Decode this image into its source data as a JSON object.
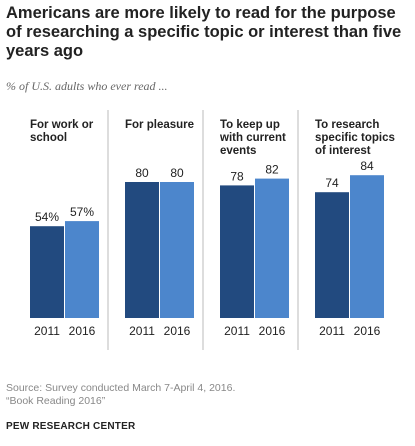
{
  "title": "Americans are more likely to read for the purpose of researching  a specific topic or interest than five years ago",
  "subtitle": "% of U.S. adults who ever read ...",
  "colors": {
    "y2011": "#224a7f",
    "y2016": "#4c86cc",
    "divider": "#bbbbbb"
  },
  "chart_data": {
    "type": "bar",
    "series": [
      {
        "name": "2011",
        "values": [
          54,
          80,
          78,
          74
        ],
        "labels": [
          "54%",
          "80",
          "78",
          "74"
        ]
      },
      {
        "name": "2016",
        "values": [
          57,
          80,
          82,
          84
        ],
        "labels": [
          "57%",
          "80",
          "82",
          "84"
        ]
      }
    ],
    "categories": [
      [
        "For work or",
        "school"
      ],
      [
        "For pleasure"
      ],
      [
        "To keep up",
        "with current",
        "events"
      ],
      [
        "To research",
        "specific topics",
        "of interest"
      ]
    ],
    "ylim": [
      0,
      100
    ],
    "grid": false
  },
  "source": {
    "line1": "Source: Survey conducted March 7-April 4, 2016.",
    "line2": "“Book Reading 2016”"
  },
  "org": "PEW RESEARCH CENTER"
}
